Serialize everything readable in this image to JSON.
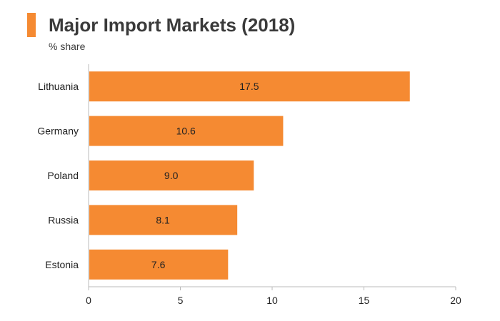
{
  "colors": {
    "accent": "#f58a32",
    "bar": "#f58a32",
    "text": "#222222",
    "axis": "#bbbbbb"
  },
  "chart_data": {
    "type": "bar",
    "orientation": "horizontal",
    "title": "Major Import Markets (2018)",
    "subtitle": "% share",
    "categories": [
      "Lithuania",
      "Germany",
      "Poland",
      "Russia",
      "Estonia"
    ],
    "values": [
      17.5,
      10.6,
      9.0,
      8.1,
      7.6
    ],
    "value_labels": [
      "17.5",
      "10.6",
      "9.0",
      "8.1",
      "7.6"
    ],
    "xlim": [
      0,
      20
    ],
    "xticks": [
      0,
      5,
      10,
      15,
      20
    ],
    "grid": false,
    "legend": "none"
  }
}
